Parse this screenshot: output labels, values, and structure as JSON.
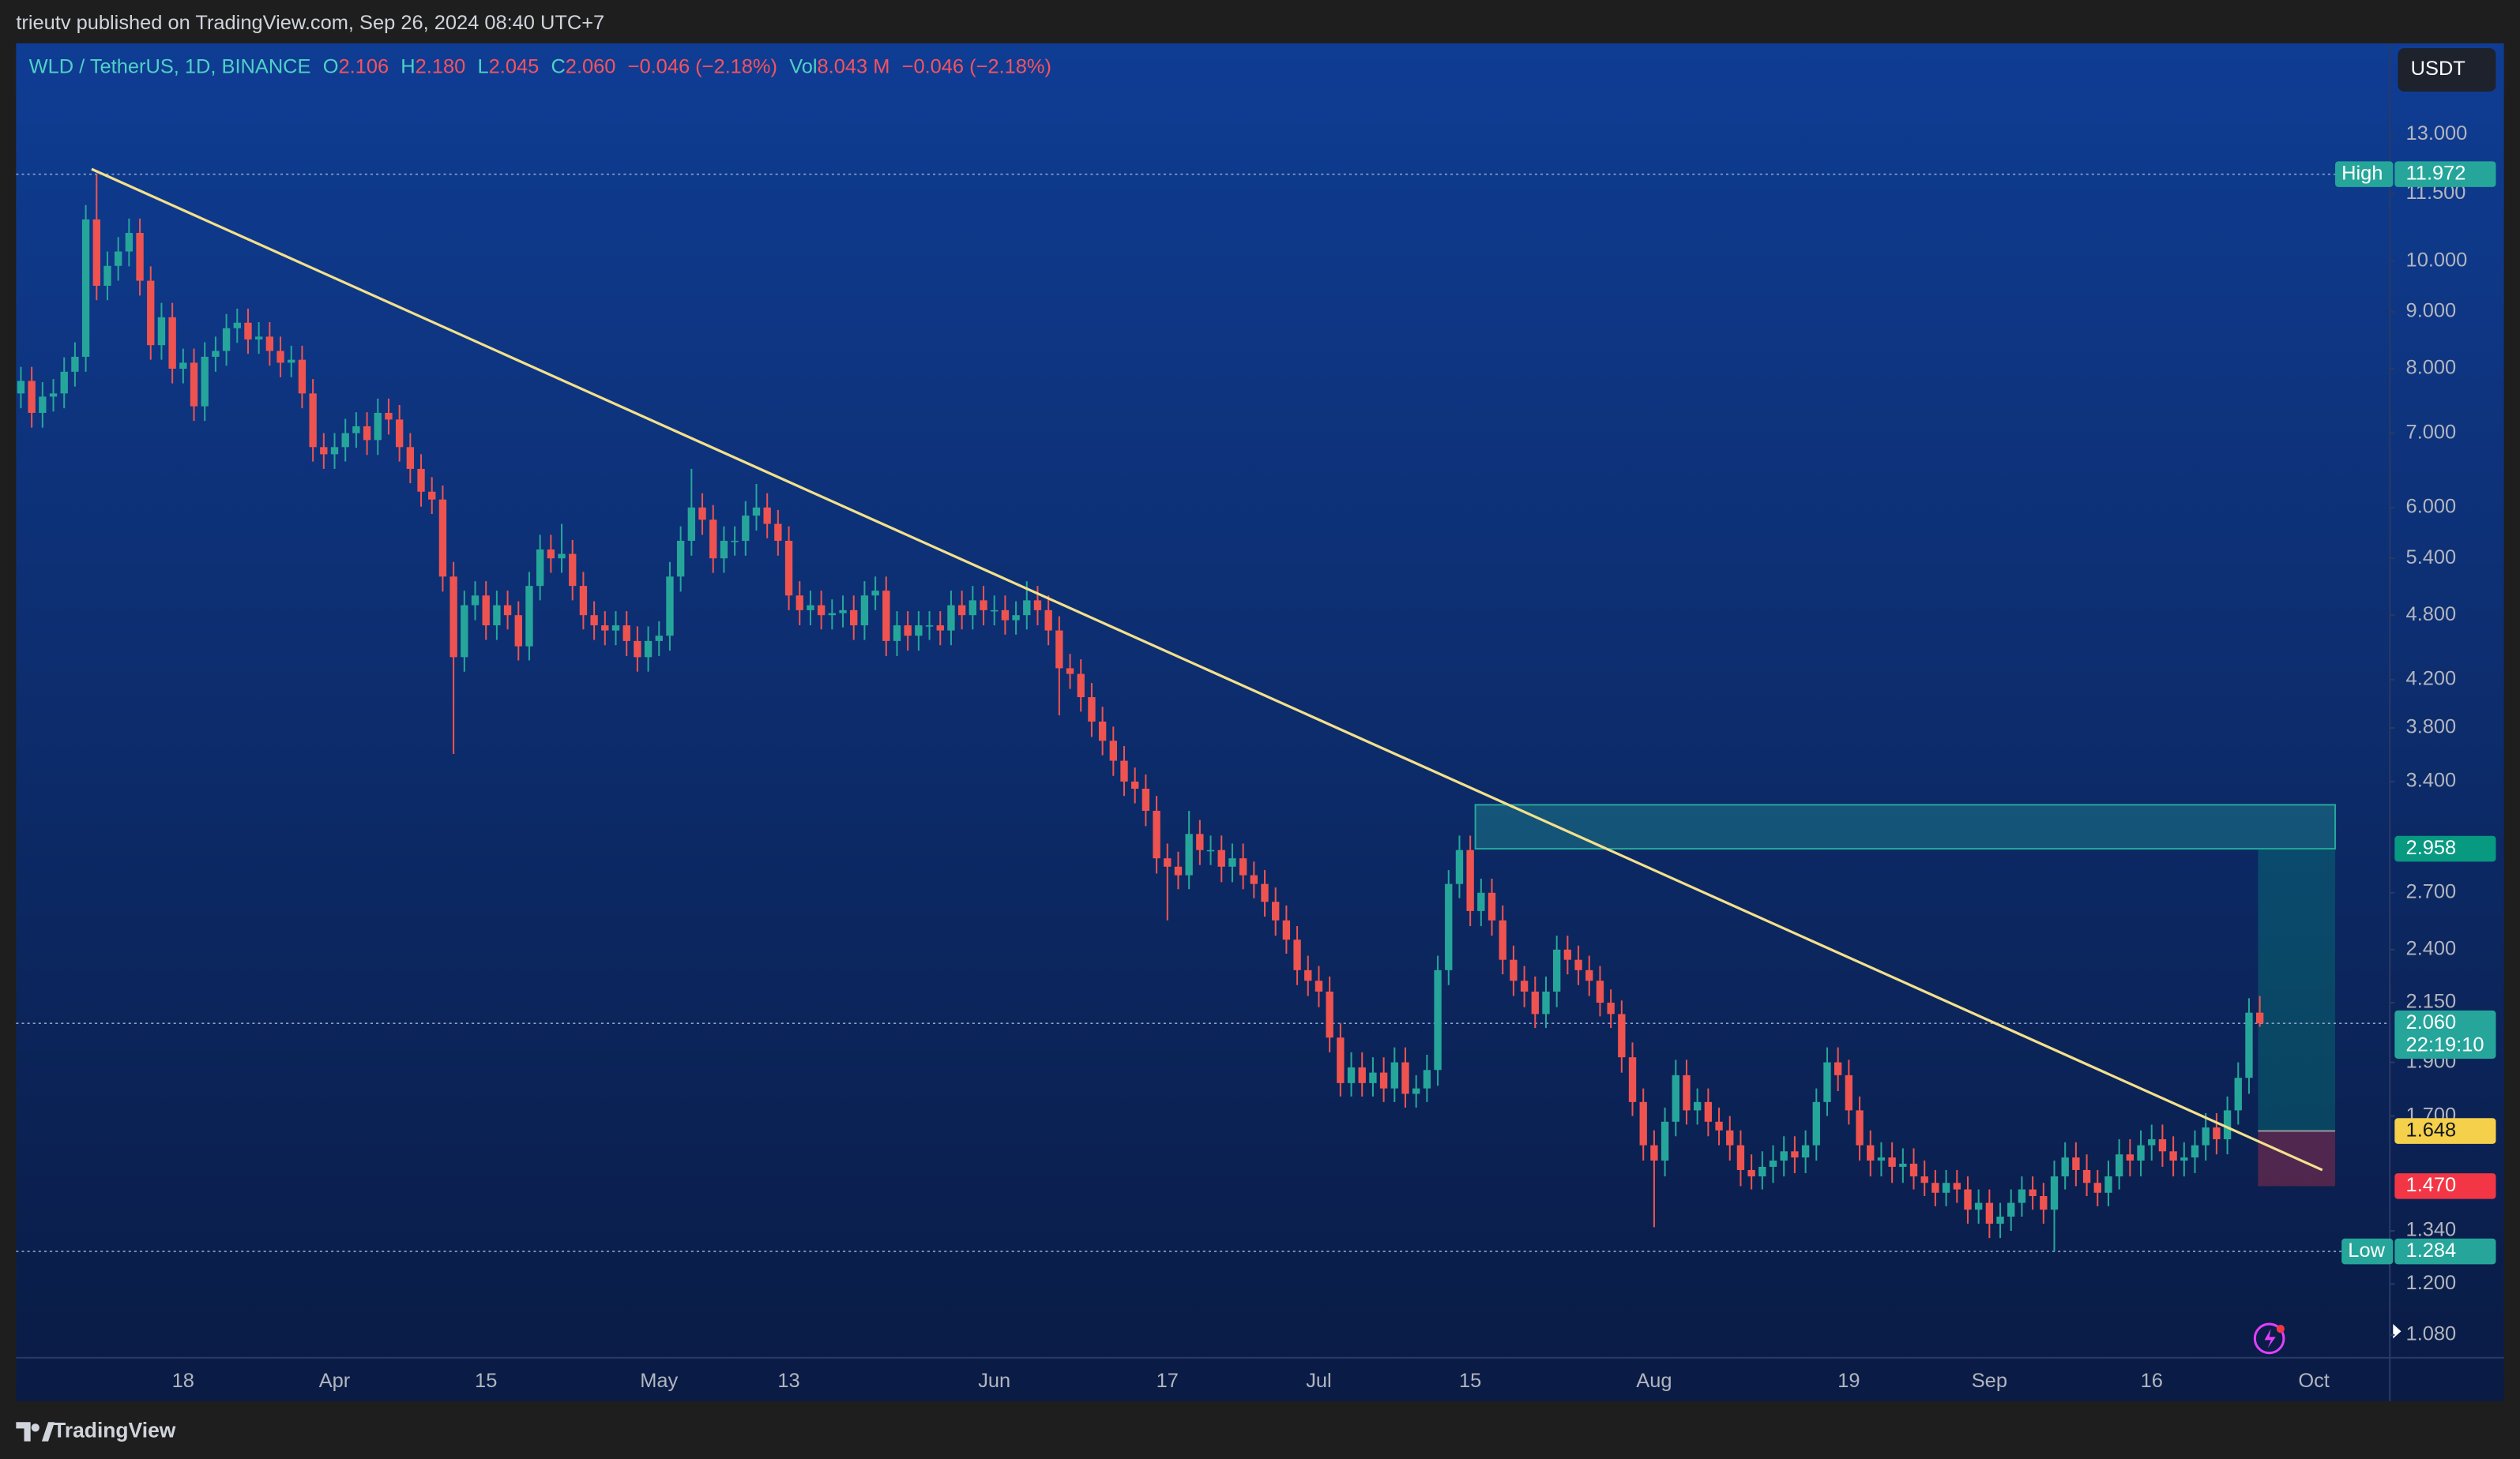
{
  "header": {
    "title": "trieutv published on TradingView.com, Sep 26, 2024 08:40 UTC+7"
  },
  "toolbar": {
    "currency": "USDT"
  },
  "footer": {
    "brand": "TradingView"
  },
  "chart_data": {
    "type": "candlestick",
    "log_scale": true,
    "up_color": "#26a69a",
    "down_color": "#ef5350",
    "legend": {
      "symbol": "WLD / TetherUS, 1D, BINANCE",
      "items": [
        {
          "key": "O",
          "value": "2.106"
        },
        {
          "key": "H",
          "value": "2.180"
        },
        {
          "key": "L",
          "value": "2.045"
        },
        {
          "key": "C",
          "value": "2.060"
        }
      ],
      "change": "−0.046 (−2.18%)",
      "volume_key": "Vol",
      "volume": "8.043 M",
      "volume_change": "−0.046 (−2.18%)"
    },
    "categories": [
      null,
      null,
      null,
      null,
      null,
      null,
      null,
      null,
      null,
      null,
      null,
      null,
      null,
      null,
      null,
      "18",
      null,
      null,
      null,
      null,
      null,
      null,
      null,
      null,
      null,
      null,
      null,
      null,
      null,
      "Apr",
      null,
      null,
      null,
      null,
      null,
      null,
      null,
      null,
      null,
      null,
      null,
      null,
      null,
      "15",
      null,
      null,
      null,
      null,
      null,
      null,
      null,
      null,
      null,
      null,
      null,
      null,
      null,
      null,
      null,
      "May",
      null,
      null,
      null,
      null,
      null,
      null,
      null,
      null,
      null,
      null,
      null,
      "13",
      null,
      null,
      null,
      null,
      null,
      null,
      null,
      null,
      null,
      null,
      null,
      null,
      null,
      null,
      null,
      null,
      null,
      null,
      "Jun",
      null,
      null,
      null,
      null,
      null,
      null,
      null,
      null,
      null,
      null,
      null,
      null,
      null,
      null,
      null,
      "17",
      null,
      null,
      null,
      null,
      null,
      null,
      null,
      null,
      null,
      null,
      null,
      null,
      null,
      "Jul",
      null,
      null,
      null,
      null,
      null,
      null,
      null,
      null,
      null,
      null,
      null,
      null,
      null,
      "15",
      null,
      null,
      null,
      null,
      null,
      null,
      null,
      null,
      null,
      null,
      null,
      null,
      null,
      null,
      null,
      null,
      "Aug",
      null,
      null,
      null,
      null,
      null,
      null,
      null,
      null,
      null,
      null,
      null,
      null,
      null,
      null,
      null,
      null,
      null,
      "19",
      null,
      null,
      null,
      null,
      null,
      null,
      null,
      null,
      null,
      null,
      null,
      null,
      "Sep",
      null,
      null,
      null,
      null,
      null,
      null,
      null,
      null,
      null,
      null,
      null,
      null,
      null,
      null,
      "16",
      null,
      null,
      null,
      null,
      null,
      null,
      null,
      null,
      null,
      null,
      null,
      null,
      null,
      null,
      "Oct"
    ],
    "open": [
      7.6,
      7.8,
      7.3,
      7.55,
      7.6,
      7.95,
      8.2,
      10.9,
      9.5,
      9.9,
      10.2,
      10.6,
      9.6,
      8.4,
      8.9,
      8,
      8.1,
      7.4,
      8.2,
      8.3,
      8.7,
      8.8,
      8.5,
      8.55,
      8.3,
      8.1,
      8.15,
      7.6,
      6.8,
      6.7,
      6.8,
      7,
      7.1,
      6.9,
      7.3,
      7.2,
      6.8,
      6.5,
      6.2,
      6.1,
      5.2,
      4.4,
      4.9,
      5,
      4.7,
      4.9,
      4.8,
      4.5,
      5.1,
      5.5,
      5.4,
      5.45,
      5.1,
      4.8,
      4.7,
      4.65,
      4.7,
      4.55,
      4.4,
      4.55,
      4.6,
      5.2,
      5.6,
      6,
      5.85,
      5.4,
      5.6,
      5.6,
      5.9,
      6,
      5.8,
      5.6,
      5,
      4.85,
      4.9,
      4.8,
      4.82,
      4.85,
      4.7,
      5,
      5.05,
      4.55,
      4.7,
      4.6,
      4.7,
      4.7,
      4.65,
      4.9,
      4.8,
      4.95,
      4.85,
      4.85,
      4.75,
      4.8,
      4.95,
      4.85,
      4.65,
      4.3,
      4.25,
      4.05,
      3.85,
      3.7,
      3.55,
      3.4,
      3.35,
      3.2,
      2.9,
      2.85,
      2.8,
      3.05,
      2.95,
      2.95,
      2.85,
      2.9,
      2.8,
      2.75,
      2.65,
      2.55,
      2.45,
      2.3,
      2.25,
      2.2,
      2,
      1.82,
      1.88,
      1.82,
      1.86,
      1.8,
      1.9,
      1.78,
      1.8,
      1.87,
      2.3,
      2.75,
      2.95,
      2.6,
      2.7,
      2.55,
      2.35,
      2.25,
      2.2,
      2.1,
      2.2,
      2.4,
      2.35,
      2.3,
      2.25,
      2.15,
      2.1,
      1.92,
      1.75,
      1.6,
      1.55,
      1.68,
      1.85,
      1.72,
      1.75,
      1.68,
      1.65,
      1.6,
      1.52,
      1.5,
      1.53,
      1.55,
      1.58,
      1.56,
      1.6,
      1.75,
      1.9,
      1.85,
      1.72,
      1.6,
      1.55,
      1.56,
      1.53,
      1.54,
      1.5,
      1.48,
      1.45,
      1.48,
      1.46,
      1.4,
      1.42,
      1.36,
      1.38,
      1.42,
      1.46,
      1.44,
      1.4,
      1.5,
      1.56,
      1.52,
      1.48,
      1.45,
      1.5,
      1.57,
      1.55,
      1.6,
      1.62,
      1.58,
      1.55,
      1.56,
      1.6,
      1.66,
      1.62,
      1.72,
      1.84,
      2.106,
      null,
      null,
      null,
      null,
      null
    ],
    "high": [
      8.03,
      8.03,
      7.78,
      7.83,
      8.19,
      8.45,
      11.23,
      11.972,
      10.2,
      10.51,
      10.92,
      10.92,
      9.89,
      9.17,
      9.17,
      8.34,
      8.34,
      8.45,
      8.55,
      8.96,
      9.06,
      9.06,
      8.81,
      8.81,
      8.55,
      8.39,
      8.39,
      7.83,
      7,
      7,
      7.21,
      7.31,
      7.31,
      7.52,
      7.52,
      7.42,
      7,
      6.7,
      6.39,
      6.28,
      5.36,
      5.05,
      5.15,
      5.15,
      5.05,
      5.05,
      4.94,
      5.25,
      5.67,
      5.67,
      5.8,
      5.61,
      5.25,
      4.94,
      4.84,
      4.84,
      4.84,
      4.69,
      4.69,
      4.74,
      5.36,
      5.77,
      6.5,
      6.18,
      6.03,
      5.77,
      5.77,
      6.08,
      6.3,
      6.18,
      5.97,
      5.77,
      5.15,
      5.05,
      5.05,
      4.96,
      5,
      5,
      5.15,
      5.2,
      5.2,
      4.84,
      4.84,
      4.84,
      4.84,
      4.84,
      5.05,
      5.05,
      5.1,
      5.1,
      5,
      5,
      4.94,
      5.15,
      5.1,
      5,
      4.79,
      4.43,
      4.38,
      4.17,
      3.97,
      3.81,
      3.66,
      3.5,
      3.45,
      3.3,
      2.99,
      2.94,
      3.2,
      3.14,
      3.04,
      3.04,
      2.99,
      2.99,
      2.88,
      2.83,
      2.73,
      2.63,
      2.52,
      2.37,
      2.32,
      2.27,
      2.06,
      1.94,
      1.94,
      1.92,
      1.92,
      1.96,
      1.96,
      1.85,
      1.93,
      2.37,
      2.83,
      3.04,
      3.04,
      2.78,
      2.78,
      2.63,
      2.42,
      2.32,
      2.27,
      2.27,
      2.47,
      2.47,
      2.42,
      2.37,
      2.32,
      2.21,
      2.16,
      1.98,
      1.8,
      1.65,
      1.73,
      1.91,
      1.91,
      1.8,
      1.8,
      1.73,
      1.7,
      1.65,
      1.57,
      1.58,
      1.6,
      1.63,
      1.63,
      1.65,
      1.8,
      1.96,
      1.96,
      1.91,
      1.77,
      1.65,
      1.61,
      1.61,
      1.59,
      1.59,
      1.55,
      1.52,
      1.52,
      1.52,
      1.5,
      1.46,
      1.46,
      1.42,
      1.46,
      1.5,
      1.5,
      1.48,
      1.55,
      1.61,
      1.61,
      1.57,
      1.52,
      1.55,
      1.62,
      1.62,
      1.65,
      1.67,
      1.67,
      1.63,
      1.61,
      1.65,
      1.71,
      1.71,
      1.77,
      1.9,
      2.17,
      2.18,
      null,
      null,
      null,
      null,
      null
    ],
    "low": [
      7.37,
      7.08,
      7.08,
      7.32,
      7.37,
      7.71,
      7.95,
      9.22,
      9.22,
      9.6,
      9.89,
      9.31,
      8.15,
      8.15,
      7.76,
      7.76,
      7.18,
      7.18,
      7.95,
      8.05,
      8.44,
      8.25,
      8.25,
      8.05,
      7.86,
      7.86,
      7.37,
      6.6,
      6.5,
      6.5,
      6.6,
      6.79,
      6.69,
      6.69,
      6.98,
      6.6,
      6.31,
      6.01,
      5.92,
      5.04,
      3.6,
      4.27,
      4.75,
      4.56,
      4.56,
      4.66,
      4.37,
      4.37,
      4.95,
      5.24,
      5.24,
      4.95,
      4.66,
      4.56,
      4.51,
      4.51,
      4.41,
      4.27,
      4.27,
      4.41,
      4.46,
      5.04,
      5.43,
      5.67,
      5.24,
      5.24,
      5.43,
      5.43,
      5.72,
      5.63,
      5.43,
      4.85,
      4.7,
      4.7,
      4.66,
      4.66,
      4.68,
      4.56,
      4.56,
      4.85,
      4.41,
      4.41,
      4.46,
      4.46,
      4.56,
      4.51,
      4.51,
      4.66,
      4.66,
      4.7,
      4.7,
      4.61,
      4.61,
      4.66,
      4.7,
      4.51,
      3.9,
      4.12,
      3.93,
      3.73,
      3.59,
      3.44,
      3.3,
      3.25,
      3.1,
      2.81,
      2.55,
      2.72,
      2.72,
      2.86,
      2.86,
      2.76,
      2.76,
      2.72,
      2.67,
      2.57,
      2.47,
      2.38,
      2.23,
      2.18,
      2.13,
      1.94,
      1.77,
      1.77,
      1.77,
      1.77,
      1.75,
      1.75,
      1.73,
      1.73,
      1.75,
      1.81,
      2.23,
      2.67,
      2.52,
      2.52,
      2.47,
      2.28,
      2.18,
      2.13,
      2.04,
      2.04,
      2.13,
      2.28,
      2.23,
      2.18,
      2.09,
      2.04,
      1.86,
      1.7,
      1.55,
      1.35,
      1.5,
      1.63,
      1.67,
      1.67,
      1.63,
      1.6,
      1.55,
      1.47,
      1.46,
      1.46,
      1.48,
      1.5,
      1.51,
      1.51,
      1.55,
      1.7,
      1.79,
      1.67,
      1.55,
      1.5,
      1.5,
      1.48,
      1.48,
      1.46,
      1.44,
      1.41,
      1.41,
      1.42,
      1.36,
      1.36,
      1.32,
      1.32,
      1.34,
      1.38,
      1.4,
      1.36,
      1.284,
      1.46,
      1.47,
      1.44,
      1.41,
      1.41,
      1.46,
      1.5,
      1.5,
      1.55,
      1.53,
      1.5,
      1.5,
      1.51,
      1.55,
      1.57,
      1.57,
      1.67,
      1.78,
      2.045,
      null,
      null,
      null,
      null,
      null
    ],
    "close": [
      7.8,
      7.3,
      7.55,
      7.6,
      7.95,
      8.2,
      10.9,
      9.5,
      9.9,
      10.2,
      10.6,
      9.6,
      8.4,
      8.9,
      8,
      8.1,
      7.4,
      8.2,
      8.3,
      8.7,
      8.8,
      8.5,
      8.55,
      8.3,
      8.1,
      8.15,
      7.6,
      6.8,
      6.7,
      6.8,
      7,
      7.1,
      6.9,
      7.3,
      7.2,
      6.8,
      6.5,
      6.2,
      6.1,
      5.2,
      4.4,
      4.9,
      5,
      4.7,
      4.9,
      4.8,
      4.5,
      5.1,
      5.5,
      5.4,
      5.45,
      5.1,
      4.8,
      4.7,
      4.65,
      4.7,
      4.55,
      4.4,
      4.55,
      4.6,
      5.2,
      5.6,
      6,
      5.85,
      5.4,
      5.6,
      5.6,
      5.9,
      6,
      5.8,
      5.6,
      5,
      4.85,
      4.9,
      4.8,
      4.82,
      4.85,
      4.7,
      5,
      5.05,
      4.55,
      4.7,
      4.6,
      4.7,
      4.7,
      4.65,
      4.9,
      4.8,
      4.95,
      4.85,
      4.85,
      4.75,
      4.8,
      4.95,
      4.85,
      4.65,
      4.3,
      4.25,
      4.05,
      3.85,
      3.7,
      3.55,
      3.4,
      3.35,
      3.2,
      2.9,
      2.85,
      2.8,
      3.05,
      2.95,
      2.95,
      2.85,
      2.9,
      2.8,
      2.75,
      2.65,
      2.55,
      2.45,
      2.3,
      2.25,
      2.2,
      2,
      1.82,
      1.88,
      1.82,
      1.86,
      1.8,
      1.9,
      1.78,
      1.8,
      1.87,
      2.3,
      2.75,
      2.95,
      2.6,
      2.7,
      2.55,
      2.35,
      2.25,
      2.2,
      2.1,
      2.2,
      2.4,
      2.35,
      2.3,
      2.25,
      2.15,
      2.1,
      1.92,
      1.75,
      1.6,
      1.55,
      1.68,
      1.85,
      1.72,
      1.75,
      1.68,
      1.65,
      1.6,
      1.52,
      1.5,
      1.53,
      1.55,
      1.58,
      1.56,
      1.6,
      1.75,
      1.9,
      1.85,
      1.72,
      1.6,
      1.55,
      1.56,
      1.53,
      1.54,
      1.5,
      1.48,
      1.45,
      1.48,
      1.46,
      1.4,
      1.42,
      1.36,
      1.38,
      1.42,
      1.46,
      1.44,
      1.4,
      1.5,
      1.56,
      1.52,
      1.48,
      1.45,
      1.5,
      1.57,
      1.55,
      1.6,
      1.62,
      1.58,
      1.55,
      1.56,
      1.6,
      1.66,
      1.62,
      1.72,
      1.84,
      2.106,
      2.06,
      null,
      null,
      null,
      null,
      null
    ],
    "ylim": [
      1.03,
      15.7
    ],
    "yticks": [
      {
        "value": 13,
        "label": "13.000"
      },
      {
        "value": 11.5,
        "label": "11.500"
      },
      {
        "value": 10,
        "label": "10.000"
      },
      {
        "value": 9,
        "label": "9.000"
      },
      {
        "value": 8,
        "label": "8.000"
      },
      {
        "value": 7,
        "label": "7.000"
      },
      {
        "value": 6,
        "label": "6.000"
      },
      {
        "value": 5.4,
        "label": "5.400"
      },
      {
        "value": 4.8,
        "label": "4.800"
      },
      {
        "value": 4.2,
        "label": "4.200"
      },
      {
        "value": 3.8,
        "label": "3.800"
      },
      {
        "value": 3.4,
        "label": "3.400"
      },
      {
        "value": 2.7,
        "label": "2.700"
      },
      {
        "value": 2.4,
        "label": "2.400"
      },
      {
        "value": 2.15,
        "label": "2.150"
      },
      {
        "value": 1.9,
        "label": "1.900"
      },
      {
        "value": 1.7,
        "label": "1.700"
      },
      {
        "value": 1.34,
        "label": "1.340"
      },
      {
        "value": 1.2,
        "label": "1.200"
      },
      {
        "value": 1.08,
        "label": "1.080"
      }
    ],
    "trend_line": [
      12.1,
      1.52
    ],
    "trend_color": "#f3e08c",
    "zone": {
      "top": 3.24,
      "bottom": 2.958
    },
    "price_tags": {
      "high_label": "High",
      "high": 11.972,
      "target": 2.958,
      "last": {
        "value": 2.06,
        "label": "2.060"
      },
      "countdown": "22:19:10",
      "entry": 1.648,
      "stop": {
        "value": 1.47,
        "label": "1.470"
      },
      "low_label": "Low",
      "low": 1.284
    }
  }
}
